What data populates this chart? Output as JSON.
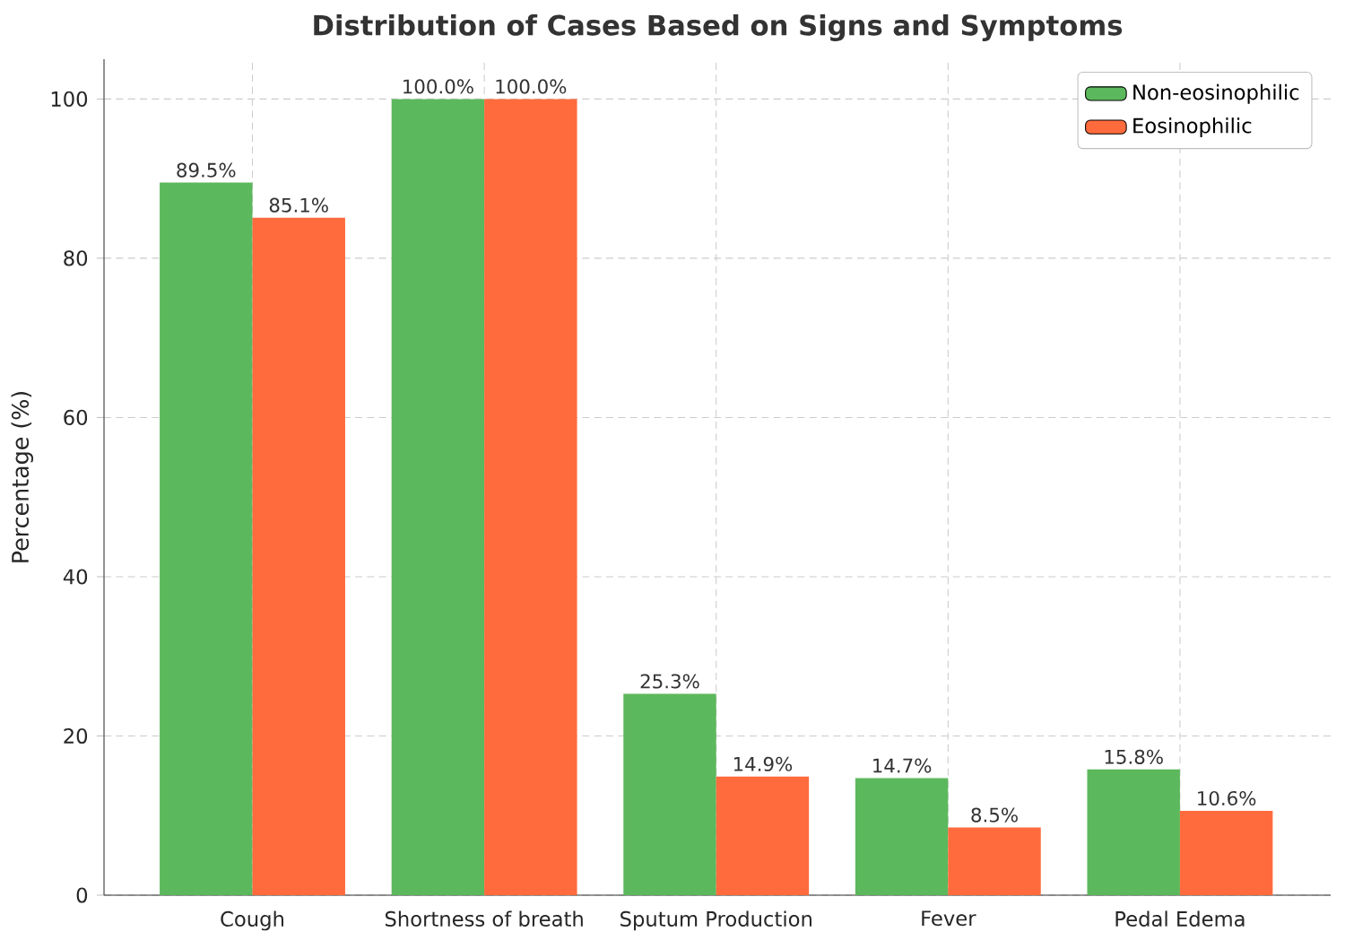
{
  "chart_data": {
    "type": "bar",
    "title": "Distribution of Cases Based on Signs and Symptoms",
    "ylabel": "Percentage (%)",
    "categories": [
      "Cough",
      "Shortness of breath",
      "Sputum Production",
      "Fever",
      "Pedal Edema"
    ],
    "series": [
      {
        "name": "Non-eosinophilic",
        "color": "#5cb85c",
        "values": [
          89.5,
          100.0,
          25.3,
          14.7,
          15.8
        ],
        "value_labels": [
          "89.5%",
          "100.0%",
          "25.3%",
          "14.7%",
          "15.8%"
        ]
      },
      {
        "name": "Eosinophilic",
        "color": "#ff6b3d",
        "values": [
          85.1,
          100.0,
          14.9,
          8.5,
          10.6
        ],
        "value_labels": [
          "85.1%",
          "100.0%",
          "14.9%",
          "8.5%",
          "10.6%"
        ]
      }
    ],
    "ylim": [
      0,
      105
    ],
    "yticks": [
      0,
      20,
      40,
      60,
      80,
      100
    ],
    "grid": true,
    "legend": "top right"
  }
}
